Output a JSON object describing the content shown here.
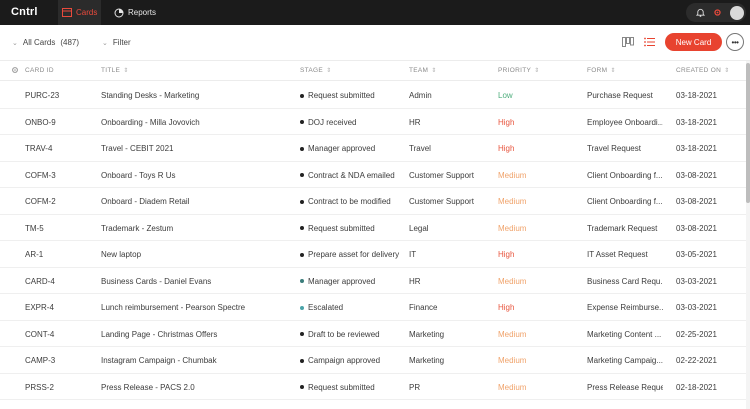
{
  "nav": {
    "logo": "Cntrl",
    "tabs": [
      {
        "label": "Cards",
        "active": true
      },
      {
        "label": "Reports",
        "active": false
      }
    ]
  },
  "toolbar": {
    "all_cards_label": "All Cards",
    "all_cards_count": "(487)",
    "filter_label": "Filter",
    "new_card_label": "New Card",
    "more_label": "•••"
  },
  "table": {
    "columns": [
      "CARD ID",
      "TITLE",
      "STAGE",
      "TEAM",
      "PRIORITY",
      "FORM",
      "CREATED ON"
    ],
    "rows": [
      {
        "id": "PURC-23",
        "title": "Standing Desks - Marketing",
        "stage": "Request submitted",
        "stage_color": "#222222",
        "team": "Admin",
        "priority": "Low",
        "form": "Purchase Request",
        "date": "03-18-2021"
      },
      {
        "id": "ONBO-9",
        "title": "Onboarding - Milla Jovovich",
        "stage": "DOJ received",
        "stage_color": "#222222",
        "team": "HR",
        "priority": "High",
        "form": "Employee Onboardi...",
        "date": "03-18-2021"
      },
      {
        "id": "TRAV-4",
        "title": "Travel - CEBIT 2021",
        "stage": "Manager approved",
        "stage_color": "#222222",
        "team": "Travel",
        "priority": "High",
        "form": "Travel Request",
        "date": "03-18-2021"
      },
      {
        "id": "COFM-3",
        "title": "Onboard - Toys R Us",
        "stage": "Contract & NDA emailed",
        "stage_color": "#222222",
        "team": "Customer Support",
        "priority": "Medium",
        "form": "Client Onboarding f...",
        "date": "03-08-2021"
      },
      {
        "id": "COFM-2",
        "title": "Onboard - Diadem Retail",
        "stage": "Contract to be modified",
        "stage_color": "#222222",
        "team": "Customer Support",
        "priority": "Medium",
        "form": "Client Onboarding f...",
        "date": "03-08-2021"
      },
      {
        "id": "TM-5",
        "title": "Trademark - Zestum",
        "stage": "Request submitted",
        "stage_color": "#222222",
        "team": "Legal",
        "priority": "Medium",
        "form": "Trademark Request",
        "date": "03-08-2021"
      },
      {
        "id": "AR-1",
        "title": "New laptop",
        "stage": "Prepare asset for delivery",
        "stage_color": "#222222",
        "team": "IT",
        "priority": "High",
        "form": "IT Asset Request",
        "date": "03-05-2021"
      },
      {
        "id": "CARD-4",
        "title": "Business Cards - Daniel Evans",
        "stage": "Manager approved",
        "stage_color": "#3a7d7b",
        "team": "HR",
        "priority": "Medium",
        "form": "Business Card Requ...",
        "date": "03-03-2021"
      },
      {
        "id": "EXPR-4",
        "title": "Lunch reimbursement - Pearson Spectre",
        "stage": "Escalated",
        "stage_color": "#4aa3a8",
        "team": "Finance",
        "priority": "High",
        "form": "Expense Reimburse...",
        "date": "03-03-2021"
      },
      {
        "id": "CONT-4",
        "title": "Landing Page - Christmas Offers",
        "stage": "Draft to be reviewed",
        "stage_color": "#222222",
        "team": "Marketing",
        "priority": "Medium",
        "form": "Marketing Content ...",
        "date": "02-25-2021"
      },
      {
        "id": "CAMP-3",
        "title": "Instagram Campaign - Chumbak",
        "stage": "Campaign approved",
        "stage_color": "#222222",
        "team": "Marketing",
        "priority": "Medium",
        "form": "Marketing Campaig...",
        "date": "02-22-2021"
      },
      {
        "id": "PRSS-2",
        "title": "Press Release - PACS 2.0",
        "stage": "Request submitted",
        "stage_color": "#222222",
        "team": "PR",
        "priority": "Medium",
        "form": "Press Release Request",
        "date": "02-18-2021"
      }
    ]
  },
  "colors": {
    "accent": "#e8432f",
    "priority_low": "#4fae7d",
    "priority_high": "#e8563f",
    "priority_medium": "#f0a36b"
  }
}
